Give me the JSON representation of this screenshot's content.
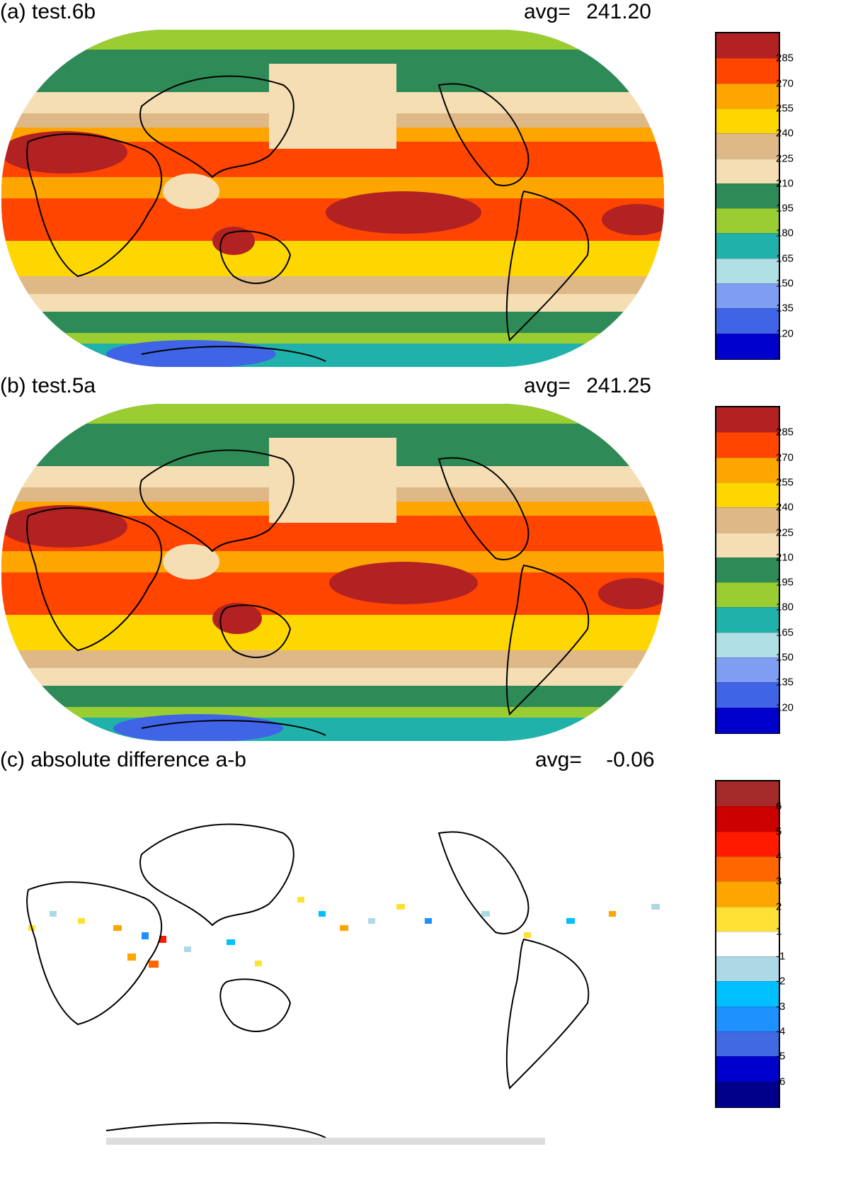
{
  "panels": [
    {
      "title": "(a) test.6b",
      "avg_label": "avg=",
      "avg_value": "241.20",
      "legend": {
        "colors": [
          "#0000cd",
          "#3f64e6",
          "#7f9ef2",
          "#b0e0e6",
          "#20b2aa",
          "#9acd32",
          "#2e8b57",
          "#f5deb3",
          "#deb887",
          "#ffd700",
          "#ffa500",
          "#ff4500",
          "#b22222"
        ],
        "labels": [
          "120",
          "135",
          "150",
          "165",
          "180",
          "195",
          "210",
          "225",
          "240",
          "255",
          "270",
          "285"
        ]
      }
    },
    {
      "title": "(b) test.5a",
      "avg_label": "avg=",
      "avg_value": "241.25",
      "legend": {
        "colors": [
          "#0000cd",
          "#3f64e6",
          "#7f9ef2",
          "#b0e0e6",
          "#20b2aa",
          "#9acd32",
          "#2e8b57",
          "#f5deb3",
          "#deb887",
          "#ffd700",
          "#ffa500",
          "#ff4500",
          "#b22222"
        ],
        "labels": [
          "120",
          "135",
          "150",
          "165",
          "180",
          "195",
          "210",
          "225",
          "240",
          "255",
          "270",
          "285"
        ]
      }
    },
    {
      "title": "(c) absolute difference a-b",
      "avg_label": "avg=",
      "avg_value": "-0.06",
      "legend": {
        "colors": [
          "#00008b",
          "#0000cd",
          "#4169e1",
          "#1e90ff",
          "#00bfff",
          "#add8e6",
          "#ffffff",
          "#ffe135",
          "#ffa500",
          "#ff6600",
          "#ff1a00",
          "#cc0000",
          "#a52a2a"
        ],
        "labels": [
          "-6",
          "-5",
          "-4",
          "-3",
          "-2",
          "-1",
          "1",
          "2",
          "3",
          "4",
          "5",
          "6"
        ]
      }
    }
  ],
  "map_bands": [
    {
      "name": "polar-south",
      "color": "#7f9ef2"
    },
    {
      "name": "southern-ocean",
      "color": "#2e8b57"
    },
    {
      "name": "subpolar-south",
      "color": "#f5deb3"
    },
    {
      "name": "midlat-south",
      "color": "#ffd700"
    },
    {
      "name": "tropics",
      "color": "#ff4500"
    },
    {
      "name": "deep-convection",
      "color": "#b22222"
    },
    {
      "name": "north-dry",
      "color": "#ffa500"
    },
    {
      "name": "north-midlat",
      "color": "#deb887"
    },
    {
      "name": "north-subpolar",
      "color": "#f5deb3"
    },
    {
      "name": "arctic",
      "color": "#2e8b57"
    }
  ]
}
